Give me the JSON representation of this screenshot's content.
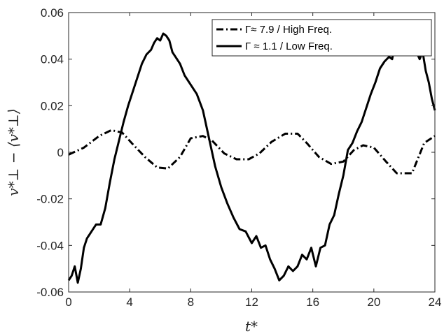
{
  "chart_data": {
    "type": "line",
    "title": "",
    "xlabel": "t*",
    "ylabel": "v*⊥ − ⟨v*⊥⟩",
    "xlim": [
      0,
      24
    ],
    "ylim": [
      -0.06,
      0.06
    ],
    "xticks": [
      "0",
      "4",
      "8",
      "12",
      "16",
      "20",
      "24"
    ],
    "yticks": [
      "-0.06",
      "-0.04",
      "-0.02",
      "0",
      "0.02",
      "0.04",
      "0.06"
    ],
    "grid": false,
    "legend_position": "top-right",
    "series": [
      {
        "name": "Γ≈ 7.9 / High Freq.",
        "style": "dashdot",
        "color": "#000000",
        "x": [
          0,
          1,
          2,
          2.8,
          3.5,
          4.2,
          5,
          5.8,
          6.5,
          7.3,
          8,
          8.8,
          9.4,
          10.2,
          11,
          11.8,
          12.5,
          13.3,
          14.2,
          15,
          15.6,
          16.4,
          17.2,
          18,
          18.7,
          19.3,
          20,
          20.8,
          21.5,
          22.5,
          23.3,
          24
        ],
        "y": [
          -0.001,
          0.002,
          0.007,
          0.0095,
          0.0085,
          0.0035,
          -0.002,
          -0.0065,
          -0.007,
          -0.002,
          0.006,
          0.007,
          0.005,
          -0.0005,
          -0.003,
          -0.003,
          -0.0005,
          0.0045,
          0.008,
          0.008,
          0.004,
          -0.002,
          -0.005,
          -0.004,
          0.001,
          0.003,
          0.002,
          -0.004,
          -0.009,
          -0.009,
          0.004,
          0.007
        ]
      },
      {
        "name": "Γ ≈ 1.1 / Low Freq.",
        "style": "solid",
        "color": "#000000",
        "x": [
          0,
          0.2,
          0.4,
          0.6,
          0.8,
          1,
          1.2,
          1.5,
          1.8,
          2.1,
          2.4,
          2.7,
          3,
          3.3,
          3.6,
          3.9,
          4.2,
          4.5,
          4.8,
          5.1,
          5.4,
          5.6,
          5.8,
          6,
          6.2,
          6.4,
          6.6,
          6.8,
          7,
          7.3,
          7.6,
          8,
          8.4,
          8.8,
          9.2,
          9.6,
          10,
          10.4,
          10.8,
          11.2,
          11.6,
          12,
          12.3,
          12.6,
          12.9,
          13.2,
          13.5,
          13.8,
          14.1,
          14.4,
          14.7,
          15,
          15.3,
          15.6,
          15.9,
          16.2,
          16.5,
          16.8,
          17.1,
          17.4,
          17.7,
          18,
          18.3,
          18.6,
          18.9,
          19.2,
          19.5,
          19.8,
          20.1,
          20.4,
          20.7,
          21,
          21.2,
          21.4,
          21.6,
          21.8,
          22,
          22.2,
          22.4,
          22.6,
          22.8,
          23,
          23.2,
          23.4,
          23.6,
          23.8,
          24
        ],
        "y": [
          -0.055,
          -0.053,
          -0.049,
          -0.056,
          -0.05,
          -0.041,
          -0.037,
          -0.034,
          -0.031,
          -0.031,
          -0.024,
          -0.013,
          -0.003,
          0.005,
          0.013,
          0.02,
          0.026,
          0.032,
          0.038,
          0.042,
          0.044,
          0.047,
          0.049,
          0.048,
          0.051,
          0.05,
          0.048,
          0.043,
          0.041,
          0.038,
          0.033,
          0.029,
          0.025,
          0.018,
          0.006,
          -0.006,
          -0.015,
          -0.022,
          -0.028,
          -0.033,
          -0.034,
          -0.039,
          -0.036,
          -0.041,
          -0.04,
          -0.046,
          -0.05,
          -0.055,
          -0.053,
          -0.049,
          -0.051,
          -0.049,
          -0.044,
          -0.046,
          -0.041,
          -0.049,
          -0.041,
          -0.04,
          -0.031,
          -0.027,
          -0.018,
          -0.01,
          0.001,
          0.004,
          0.009,
          0.013,
          0.019,
          0.025,
          0.03,
          0.036,
          0.039,
          0.041,
          0.04,
          0.047,
          0.051,
          0.046,
          0.05,
          0.044,
          0.05,
          0.051,
          0.043,
          0.04,
          0.043,
          0.035,
          0.03,
          0.023,
          0.018
        ]
      }
    ]
  }
}
